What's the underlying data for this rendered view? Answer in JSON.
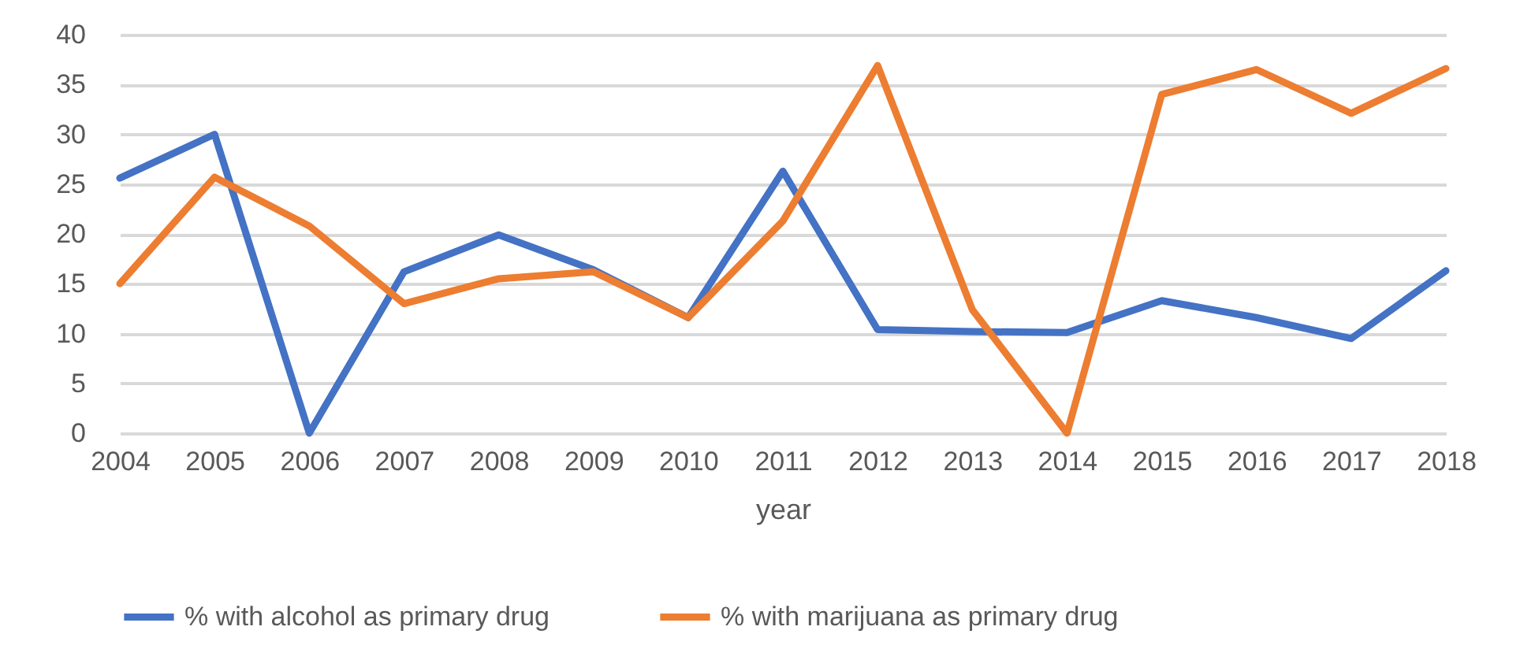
{
  "chart_data": {
    "type": "line",
    "xlabel": "year",
    "categories": [
      "2004",
      "2005",
      "2006",
      "2007",
      "2008",
      "2009",
      "2010",
      "2011",
      "2012",
      "2013",
      "2014",
      "2015",
      "2016",
      "2017",
      "2018"
    ],
    "series": [
      {
        "name": "% with alcohol as primary drug",
        "color": "#4472c4",
        "values": [
          25.6,
          30,
          0,
          16.2,
          19.9,
          16.4,
          11.6,
          26.3,
          10.4,
          10.2,
          10.1,
          13.3,
          11.6,
          9.5,
          16.3
        ]
      },
      {
        "name": "% with marijuana as primary drug",
        "color": "#ed7d31",
        "values": [
          15,
          25.7,
          20.8,
          13,
          15.5,
          16.2,
          11.6,
          21.3,
          36.9,
          12.4,
          0,
          34,
          36.5,
          32.1,
          36.6
        ]
      }
    ],
    "ylim": [
      0,
      40
    ],
    "yticks": [
      0,
      5,
      10,
      15,
      20,
      25,
      30,
      35,
      40
    ],
    "grid": "y",
    "legend": "bottom",
    "marker": "none",
    "line_style": "solid"
  }
}
